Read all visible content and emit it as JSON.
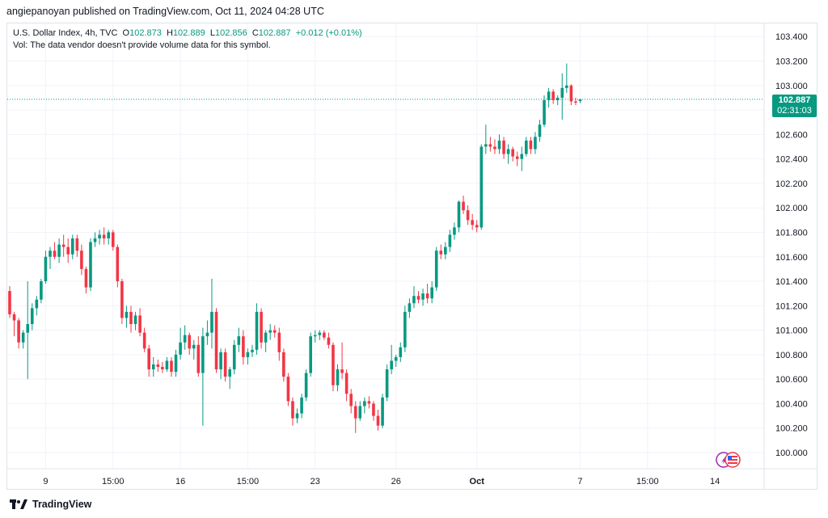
{
  "header": {
    "published": "angiepanoyan published on TradingView.com, Oct 11, 2024 04:28 UTC"
  },
  "legend": {
    "symbol": "U.S. Dollar Index, 4h, TVC",
    "open_label": "O",
    "open": "102.873",
    "high_label": "H",
    "high": "102.889",
    "low_label": "L",
    "low": "102.856",
    "close_label": "C",
    "close": "102.887",
    "change": "+0.012 (+0.01%)",
    "vol_note": "Vol: The data vendor doesn't provide volume data for this symbol."
  },
  "last_price": {
    "price": "102.887",
    "countdown": "02:31:03"
  },
  "footer": {
    "brand": "TradingView"
  },
  "colors": {
    "up": "#089981",
    "down": "#f23645",
    "grid": "#f0f3fa",
    "last_line": "#089981"
  },
  "icons": {
    "logo": "tradingview-logo-icon",
    "flag": "us-flag-icon"
  },
  "chart_data": {
    "type": "candlestick",
    "title": "U.S. Dollar Index, 4h, TVC",
    "ylim": [
      100.0,
      103.45
    ],
    "y_ticks": [
      "100.000",
      "100.200",
      "100.400",
      "100.600",
      "100.800",
      "101.000",
      "101.200",
      "101.400",
      "101.600",
      "101.800",
      "102.000",
      "102.200",
      "102.400",
      "102.600",
      "102.800",
      "103.000",
      "103.200",
      "103.400"
    ],
    "x_ticks": [
      {
        "label": "9",
        "index": 8
      },
      {
        "label": "15:00",
        "index": 23
      },
      {
        "label": "16",
        "index": 38
      },
      {
        "label": "15:00",
        "index": 53
      },
      {
        "label": "23",
        "index": 68
      },
      {
        "label": "26",
        "index": 86
      },
      {
        "label": "Oct",
        "index": 104
      },
      {
        "label": "7",
        "index": 127
      },
      {
        "label": "15:00",
        "index": 142
      },
      {
        "label": "14",
        "index": 157
      }
    ],
    "last_price": 102.887,
    "candles": [
      [
        101.32,
        101.36,
        101.1,
        101.13
      ],
      [
        101.13,
        101.15,
        100.95,
        101.08
      ],
      [
        101.08,
        101.1,
        100.85,
        100.9
      ],
      [
        100.9,
        101.0,
        100.85,
        100.98
      ],
      [
        100.98,
        101.4,
        100.6,
        101.05
      ],
      [
        101.05,
        101.22,
        101.0,
        101.18
      ],
      [
        101.18,
        101.28,
        101.12,
        101.25
      ],
      [
        101.25,
        101.42,
        101.22,
        101.4
      ],
      [
        101.4,
        101.65,
        101.38,
        101.6
      ],
      [
        101.6,
        101.68,
        101.5,
        101.65
      ],
      [
        101.65,
        101.72,
        101.58,
        101.6
      ],
      [
        101.6,
        101.75,
        101.55,
        101.7
      ],
      [
        101.7,
        101.78,
        101.6,
        101.68
      ],
      [
        101.68,
        101.75,
        101.55,
        101.62
      ],
      [
        101.62,
        101.78,
        101.58,
        101.75
      ],
      [
        101.75,
        101.78,
        101.6,
        101.65
      ],
      [
        101.65,
        101.7,
        101.45,
        101.5
      ],
      [
        101.5,
        101.52,
        101.3,
        101.35
      ],
      [
        101.35,
        101.75,
        101.32,
        101.72
      ],
      [
        101.72,
        101.8,
        101.68,
        101.75
      ],
      [
        101.75,
        101.82,
        101.7,
        101.78
      ],
      [
        101.78,
        101.84,
        101.7,
        101.75
      ],
      [
        101.75,
        101.82,
        101.7,
        101.8
      ],
      [
        101.8,
        101.82,
        101.65,
        101.68
      ],
      [
        101.68,
        101.7,
        101.35,
        101.4
      ],
      [
        101.4,
        101.42,
        101.05,
        101.1
      ],
      [
        101.1,
        101.2,
        101.02,
        101.15
      ],
      [
        101.15,
        101.2,
        100.98,
        101.05
      ],
      [
        101.05,
        101.15,
        101.0,
        101.12
      ],
      [
        101.12,
        101.18,
        100.95,
        100.98
      ],
      [
        100.98,
        101.02,
        100.82,
        100.85
      ],
      [
        100.85,
        100.88,
        100.62,
        100.68
      ],
      [
        100.68,
        100.78,
        100.62,
        100.72
      ],
      [
        100.72,
        100.76,
        100.66,
        100.7
      ],
      [
        100.7,
        100.74,
        100.65,
        100.68
      ],
      [
        100.68,
        100.78,
        100.66,
        100.75
      ],
      [
        100.75,
        100.78,
        100.62,
        100.66
      ],
      [
        100.66,
        100.84,
        100.62,
        100.8
      ],
      [
        100.8,
        101.02,
        100.76,
        100.9
      ],
      [
        100.9,
        101.04,
        100.84,
        100.96
      ],
      [
        100.96,
        100.98,
        100.8,
        100.85
      ],
      [
        100.85,
        100.92,
        100.76,
        100.88
      ],
      [
        100.88,
        100.95,
        100.62,
        100.65
      ],
      [
        100.65,
        101.02,
        100.22,
        100.95
      ],
      [
        100.95,
        101.08,
        100.88,
        100.98
      ],
      [
        100.98,
        101.42,
        100.85,
        101.15
      ],
      [
        101.15,
        101.18,
        100.65,
        100.68
      ],
      [
        100.68,
        100.85,
        100.6,
        100.82
      ],
      [
        100.82,
        100.85,
        100.58,
        100.62
      ],
      [
        100.62,
        100.7,
        100.52,
        100.68
      ],
      [
        100.68,
        100.92,
        100.64,
        100.88
      ],
      [
        100.88,
        101.02,
        100.82,
        100.95
      ],
      [
        100.95,
        101.0,
        100.72,
        100.78
      ],
      [
        100.78,
        100.85,
        100.72,
        100.82
      ],
      [
        100.82,
        100.88,
        100.78,
        100.84
      ],
      [
        100.84,
        101.22,
        100.8,
        101.15
      ],
      [
        101.15,
        101.18,
        100.85,
        100.9
      ],
      [
        100.9,
        101.0,
        100.82,
        100.98
      ],
      [
        100.98,
        101.05,
        100.92,
        101.0
      ],
      [
        101.0,
        101.04,
        100.94,
        100.98
      ],
      [
        100.98,
        101.02,
        100.75,
        100.82
      ],
      [
        100.82,
        100.85,
        100.58,
        100.62
      ],
      [
        100.62,
        100.65,
        100.38,
        100.42
      ],
      [
        100.42,
        100.45,
        100.22,
        100.28
      ],
      [
        100.28,
        100.36,
        100.24,
        100.32
      ],
      [
        100.32,
        100.48,
        100.28,
        100.45
      ],
      [
        100.45,
        100.68,
        100.42,
        100.65
      ],
      [
        100.65,
        100.98,
        100.62,
        100.95
      ],
      [
        100.95,
        101.0,
        100.9,
        100.96
      ],
      [
        100.96,
        101.0,
        100.92,
        100.98
      ],
      [
        100.98,
        101.0,
        100.92,
        100.94
      ],
      [
        100.94,
        100.98,
        100.85,
        100.88
      ],
      [
        100.88,
        100.9,
        100.5,
        100.55
      ],
      [
        100.55,
        100.72,
        100.5,
        100.68
      ],
      [
        100.68,
        100.9,
        100.6,
        100.65
      ],
      [
        100.65,
        100.68,
        100.42,
        100.48
      ],
      [
        100.48,
        100.52,
        100.32,
        100.38
      ],
      [
        100.38,
        100.42,
        100.16,
        100.28
      ],
      [
        100.28,
        100.42,
        100.26,
        100.38
      ],
      [
        100.38,
        100.45,
        100.32,
        100.42
      ],
      [
        100.42,
        100.46,
        100.36,
        100.4
      ],
      [
        100.4,
        100.42,
        100.26,
        100.3
      ],
      [
        100.3,
        100.35,
        100.18,
        100.22
      ],
      [
        100.22,
        100.48,
        100.2,
        100.45
      ],
      [
        100.45,
        100.72,
        100.42,
        100.68
      ],
      [
        100.68,
        100.88,
        100.64,
        100.75
      ],
      [
        100.75,
        100.8,
        100.7,
        100.78
      ],
      [
        100.78,
        100.9,
        100.74,
        100.86
      ],
      [
        100.86,
        101.2,
        100.82,
        101.15
      ],
      [
        101.15,
        101.26,
        101.1,
        101.22
      ],
      [
        101.22,
        101.36,
        101.18,
        101.28
      ],
      [
        101.28,
        101.32,
        101.22,
        101.25
      ],
      [
        101.25,
        101.34,
        101.2,
        101.3
      ],
      [
        101.3,
        101.38,
        101.22,
        101.26
      ],
      [
        101.26,
        101.4,
        101.22,
        101.35
      ],
      [
        101.35,
        101.68,
        101.32,
        101.65
      ],
      [
        101.65,
        101.7,
        101.58,
        101.62
      ],
      [
        101.62,
        101.72,
        101.58,
        101.68
      ],
      [
        101.68,
        101.82,
        101.64,
        101.78
      ],
      [
        101.78,
        101.88,
        101.74,
        101.84
      ],
      [
        101.84,
        102.06,
        101.8,
        102.05
      ],
      [
        102.05,
        102.1,
        101.95,
        101.98
      ],
      [
        101.98,
        102.02,
        101.86,
        101.9
      ],
      [
        101.9,
        101.95,
        101.82,
        101.86
      ],
      [
        101.86,
        101.9,
        101.8,
        101.84
      ],
      [
        101.84,
        102.52,
        101.82,
        102.5
      ],
      [
        102.5,
        102.68,
        102.44,
        102.52
      ],
      [
        102.52,
        102.58,
        102.46,
        102.5
      ],
      [
        102.5,
        102.56,
        102.44,
        102.48
      ],
      [
        102.48,
        102.6,
        102.44,
        102.55
      ],
      [
        102.55,
        102.58,
        102.4,
        102.44
      ],
      [
        102.44,
        102.52,
        102.36,
        102.48
      ],
      [
        102.48,
        102.5,
        102.38,
        102.42
      ],
      [
        102.42,
        102.46,
        102.34,
        102.4
      ],
      [
        102.4,
        102.5,
        102.3,
        102.44
      ],
      [
        102.44,
        102.58,
        102.42,
        102.55
      ],
      [
        102.55,
        102.58,
        102.44,
        102.48
      ],
      [
        102.48,
        102.62,
        102.44,
        102.58
      ],
      [
        102.58,
        102.72,
        102.54,
        102.68
      ],
      [
        102.68,
        102.92,
        102.66,
        102.88
      ],
      [
        102.88,
        102.98,
        102.82,
        102.95
      ],
      [
        102.95,
        102.97,
        102.85,
        102.88
      ],
      [
        102.88,
        102.92,
        102.84,
        102.9
      ],
      [
        102.9,
        103.1,
        102.72,
        102.98
      ],
      [
        102.98,
        103.18,
        102.94,
        103.0
      ],
      [
        103.0,
        103.01,
        102.84,
        102.87
      ],
      [
        102.87,
        102.9,
        102.84,
        102.86
      ],
      [
        102.873,
        102.889,
        102.856,
        102.887
      ]
    ]
  }
}
